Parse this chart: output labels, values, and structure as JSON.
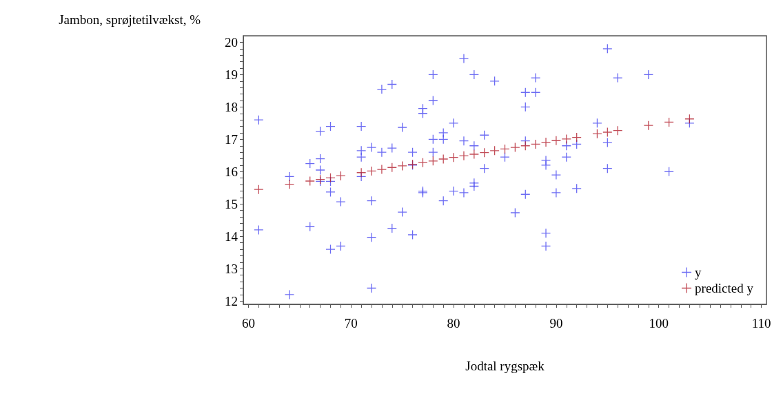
{
  "chart_data": {
    "type": "scatter",
    "xlabel": "Jodtal rygspæk",
    "ylabel": "Jambon, sprøjtetilvækst, %",
    "xlim": [
      59.5,
      110.5
    ],
    "ylim": [
      11.9,
      20.2
    ],
    "xticks": [
      60,
      {
        "value": 61,
        "label": null
      },
      {
        "value": 62,
        "label": null
      },
      {
        "value": 63,
        "label": null
      },
      {
        "value": 64,
        "label": null
      },
      {
        "value": 65,
        "label": null
      },
      {
        "value": 66,
        "label": null
      },
      {
        "value": 67,
        "label": null
      },
      {
        "value": 68,
        "label": null
      },
      {
        "value": 69,
        "label": null
      },
      70,
      {
        "value": 71,
        "label": null
      },
      {
        "value": 72,
        "label": null
      },
      {
        "value": 73,
        "label": null
      },
      {
        "value": 74,
        "label": null
      },
      {
        "value": 75,
        "label": null
      },
      {
        "value": 76,
        "label": null
      },
      {
        "value": 77,
        "label": null
      },
      {
        "value": 78,
        "label": null
      },
      {
        "value": 79,
        "label": null
      },
      80,
      {
        "value": 81,
        "label": null
      },
      {
        "value": 82,
        "label": null
      },
      {
        "value": 83,
        "label": null
      },
      {
        "value": 84,
        "label": null
      },
      {
        "value": 85,
        "label": null
      },
      {
        "value": 86,
        "label": null
      },
      {
        "value": 87,
        "label": null
      },
      {
        "value": 88,
        "label": null
      },
      {
        "value": 89,
        "label": null
      },
      90,
      {
        "value": 91,
        "label": null
      },
      {
        "value": 92,
        "label": null
      },
      {
        "value": 93,
        "label": null
      },
      {
        "value": 94,
        "label": null
      },
      {
        "value": 95,
        "label": null
      },
      {
        "value": 96,
        "label": null
      },
      {
        "value": 97,
        "label": null
      },
      {
        "value": 98,
        "label": null
      },
      {
        "value": 99,
        "label": null
      },
      100,
      {
        "value": 101,
        "label": null
      },
      {
        "value": 102,
        "label": null
      },
      {
        "value": 103,
        "label": null
      },
      {
        "value": 104,
        "label": null
      },
      {
        "value": 105,
        "label": null
      },
      {
        "value": 106,
        "label": null
      },
      {
        "value": 107,
        "label": null
      },
      {
        "value": 108,
        "label": null
      },
      {
        "value": 109,
        "label": null
      },
      110
    ],
    "yticks": [
      12,
      {
        "value": 12.2,
        "label": null
      },
      {
        "value": 12.4,
        "label": null
      },
      {
        "value": 12.6,
        "label": null
      },
      {
        "value": 12.8,
        "label": null
      },
      13,
      {
        "value": 13.2,
        "label": null
      },
      {
        "value": 13.4,
        "label": null
      },
      {
        "value": 13.6,
        "label": null
      },
      {
        "value": 13.8,
        "label": null
      },
      14,
      {
        "value": 14.2,
        "label": null
      },
      {
        "value": 14.4,
        "label": null
      },
      {
        "value": 14.6,
        "label": null
      },
      {
        "value": 14.8,
        "label": null
      },
      15,
      {
        "value": 15.2,
        "label": null
      },
      {
        "value": 15.4,
        "label": null
      },
      {
        "value": 15.6,
        "label": null
      },
      {
        "value": 15.8,
        "label": null
      },
      16,
      {
        "value": 16.2,
        "label": null
      },
      {
        "value": 16.4,
        "label": null
      },
      {
        "value": 16.6,
        "label": null
      },
      {
        "value": 16.8,
        "label": null
      },
      17,
      {
        "value": 17.2,
        "label": null
      },
      {
        "value": 17.4,
        "label": null
      },
      {
        "value": 17.6,
        "label": null
      },
      {
        "value": 17.8,
        "label": null
      },
      18,
      {
        "value": 18.2,
        "label": null
      },
      {
        "value": 18.4,
        "label": null
      },
      {
        "value": 18.6,
        "label": null
      },
      {
        "value": 18.8,
        "label": null
      },
      19,
      {
        "value": 19.2,
        "label": null
      },
      {
        "value": 19.4,
        "label": null
      },
      {
        "value": 19.6,
        "label": null
      },
      {
        "value": 19.8,
        "label": null
      },
      20
    ],
    "marker": "cross",
    "grid": false,
    "legend": "bottom right",
    "series": [
      {
        "name": "y",
        "color": "#4646f0",
        "x": [
          61,
          61,
          64,
          64,
          66,
          66,
          67,
          67,
          67,
          67,
          68,
          68,
          68,
          68,
          69,
          69,
          71,
          71,
          71,
          71,
          72,
          72,
          72,
          72,
          73,
          73,
          74,
          74,
          74,
          75,
          75,
          76,
          76,
          76,
          77,
          77,
          77,
          77,
          78,
          78,
          78,
          78,
          79,
          79,
          79,
          80,
          80,
          81,
          81,
          81,
          82,
          82,
          82,
          82,
          83,
          83,
          84,
          85,
          86,
          87,
          87,
          87,
          87,
          88,
          88,
          89,
          89,
          89,
          89,
          90,
          90,
          91,
          91,
          92,
          92,
          94,
          95,
          95,
          95,
          96,
          99,
          101,
          103
        ],
        "values": [
          17.6,
          14.2,
          15.85,
          12.2,
          16.25,
          14.3,
          17.25,
          16.4,
          16.05,
          15.7,
          17.4,
          15.7,
          15.37,
          13.6,
          15.07,
          13.7,
          17.4,
          16.65,
          16.45,
          15.85,
          16.75,
          15.1,
          13.97,
          12.4,
          18.55,
          16.6,
          18.7,
          16.73,
          14.25,
          17.37,
          14.75,
          16.6,
          16.2,
          14.05,
          17.95,
          17.8,
          15.4,
          15.35,
          19.0,
          18.2,
          17.0,
          16.6,
          17.2,
          17.0,
          15.1,
          17.5,
          15.4,
          19.5,
          16.95,
          15.35,
          19.0,
          16.8,
          15.65,
          15.55,
          17.13,
          16.1,
          18.8,
          16.45,
          14.73,
          18.45,
          18.0,
          16.95,
          15.3,
          18.9,
          18.45,
          16.35,
          16.2,
          14.1,
          13.7,
          15.9,
          15.35,
          16.8,
          16.45,
          16.85,
          15.48,
          17.5,
          19.8,
          16.9,
          16.1,
          18.9,
          19.0,
          16.0,
          17.5
        ]
      },
      {
        "name": "predicted y",
        "color": "#b3202e",
        "x": [
          61,
          64,
          66,
          67,
          68,
          69,
          71,
          72,
          73,
          74,
          75,
          76,
          77,
          78,
          79,
          80,
          81,
          82,
          83,
          84,
          85,
          86,
          87,
          88,
          89,
          90,
          91,
          92,
          94,
          95,
          96,
          99,
          101,
          103
        ],
        "values": [
          15.45,
          15.61,
          15.71,
          15.76,
          15.81,
          15.87,
          15.97,
          16.02,
          16.07,
          16.13,
          16.18,
          16.23,
          16.28,
          16.33,
          16.39,
          16.44,
          16.49,
          16.54,
          16.59,
          16.65,
          16.7,
          16.75,
          16.8,
          16.85,
          16.91,
          16.96,
          17.01,
          17.06,
          17.17,
          17.22,
          17.27,
          17.43,
          17.53,
          17.63
        ]
      }
    ]
  }
}
